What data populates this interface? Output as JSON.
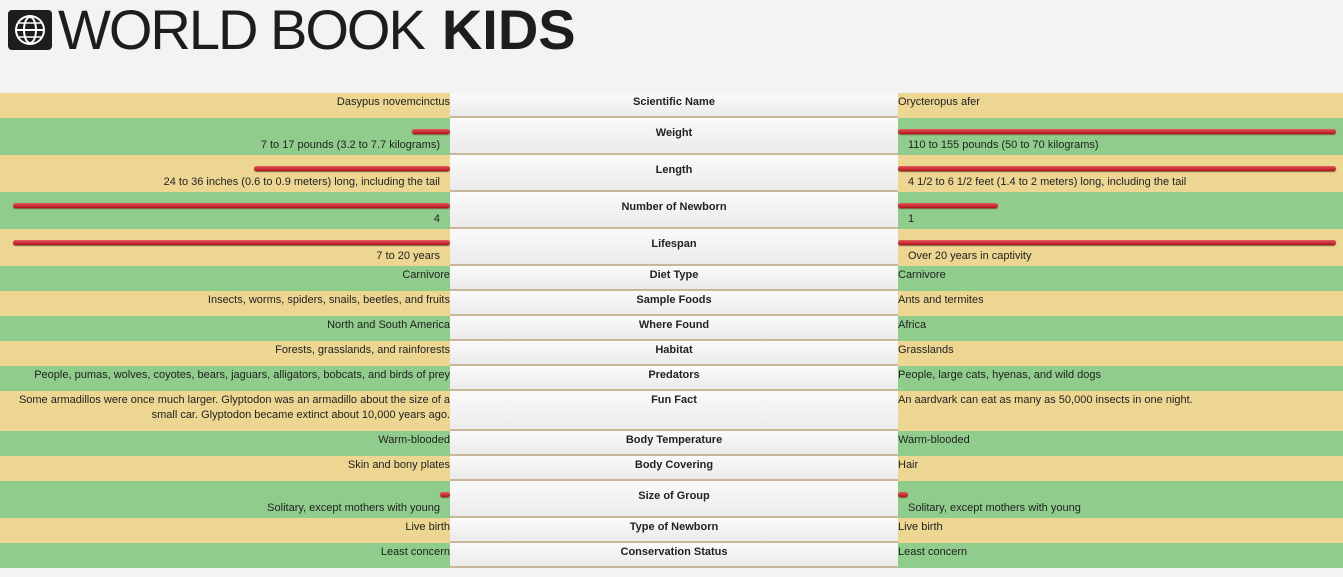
{
  "header": {
    "title_regular": "WORLD BOOK",
    "title_bold": "KIDS"
  },
  "rows": [
    {
      "label": "Scientific Name",
      "left": "Dasypus novemcinctus",
      "right": "Orycteropus afer"
    },
    {
      "label": "Weight",
      "left": "7 to 17 pounds (3.2 to 7.7 kilograms)",
      "right": "110 to 155 pounds (50 to 70 kilograms)"
    },
    {
      "label": "Length",
      "left": "24 to 36 inches (0.6 to 0.9 meters) long, including the tail",
      "right": "4 1/2 to 6 1/2 feet (1.4 to 2 meters) long, including the tail"
    },
    {
      "label": "Number of Newborn",
      "left": "4",
      "right": "1"
    },
    {
      "label": "Lifespan",
      "left": "7 to 20 years",
      "right": "Over 20 years in captivity"
    },
    {
      "label": "Diet Type",
      "left": "Carnivore",
      "right": "Carnivore"
    },
    {
      "label": "Sample Foods",
      "left": "Insects, worms, spiders, snails, beetles, and fruits",
      "right": "Ants and termites"
    },
    {
      "label": "Where Found",
      "left": "North and South America",
      "right": "Africa"
    },
    {
      "label": "Habitat",
      "left": "Forests, grasslands, and rainforests",
      "right": "Grasslands"
    },
    {
      "label": "Predators",
      "left": "People, pumas, wolves, coyotes, bears, jaguars, alligators, bobcats, and birds of prey",
      "right": "People, large cats, hyenas, and wild dogs"
    },
    {
      "label": "Fun Fact",
      "left": "Some armadillos were once much larger. Glyptodon was an armadillo about the size of a small car. Glyptodon became extinct about 10,000 years ago.",
      "right": "An aardvark can eat as many as 50,000 insects in one night."
    },
    {
      "label": "Body Temperature",
      "left": "Warm-blooded",
      "right": "Warm-blooded"
    },
    {
      "label": "Body Covering",
      "left": "Skin and bony plates",
      "right": "Hair"
    },
    {
      "label": "Size of Group",
      "left": "Solitary, except mothers with young",
      "right": "Solitary, except mothers with young"
    },
    {
      "label": "Type of Newborn",
      "left": "Live birth",
      "right": "Live birth"
    },
    {
      "label": "Conservation Status",
      "left": "Least concern",
      "right": "Least concern"
    }
  ]
}
